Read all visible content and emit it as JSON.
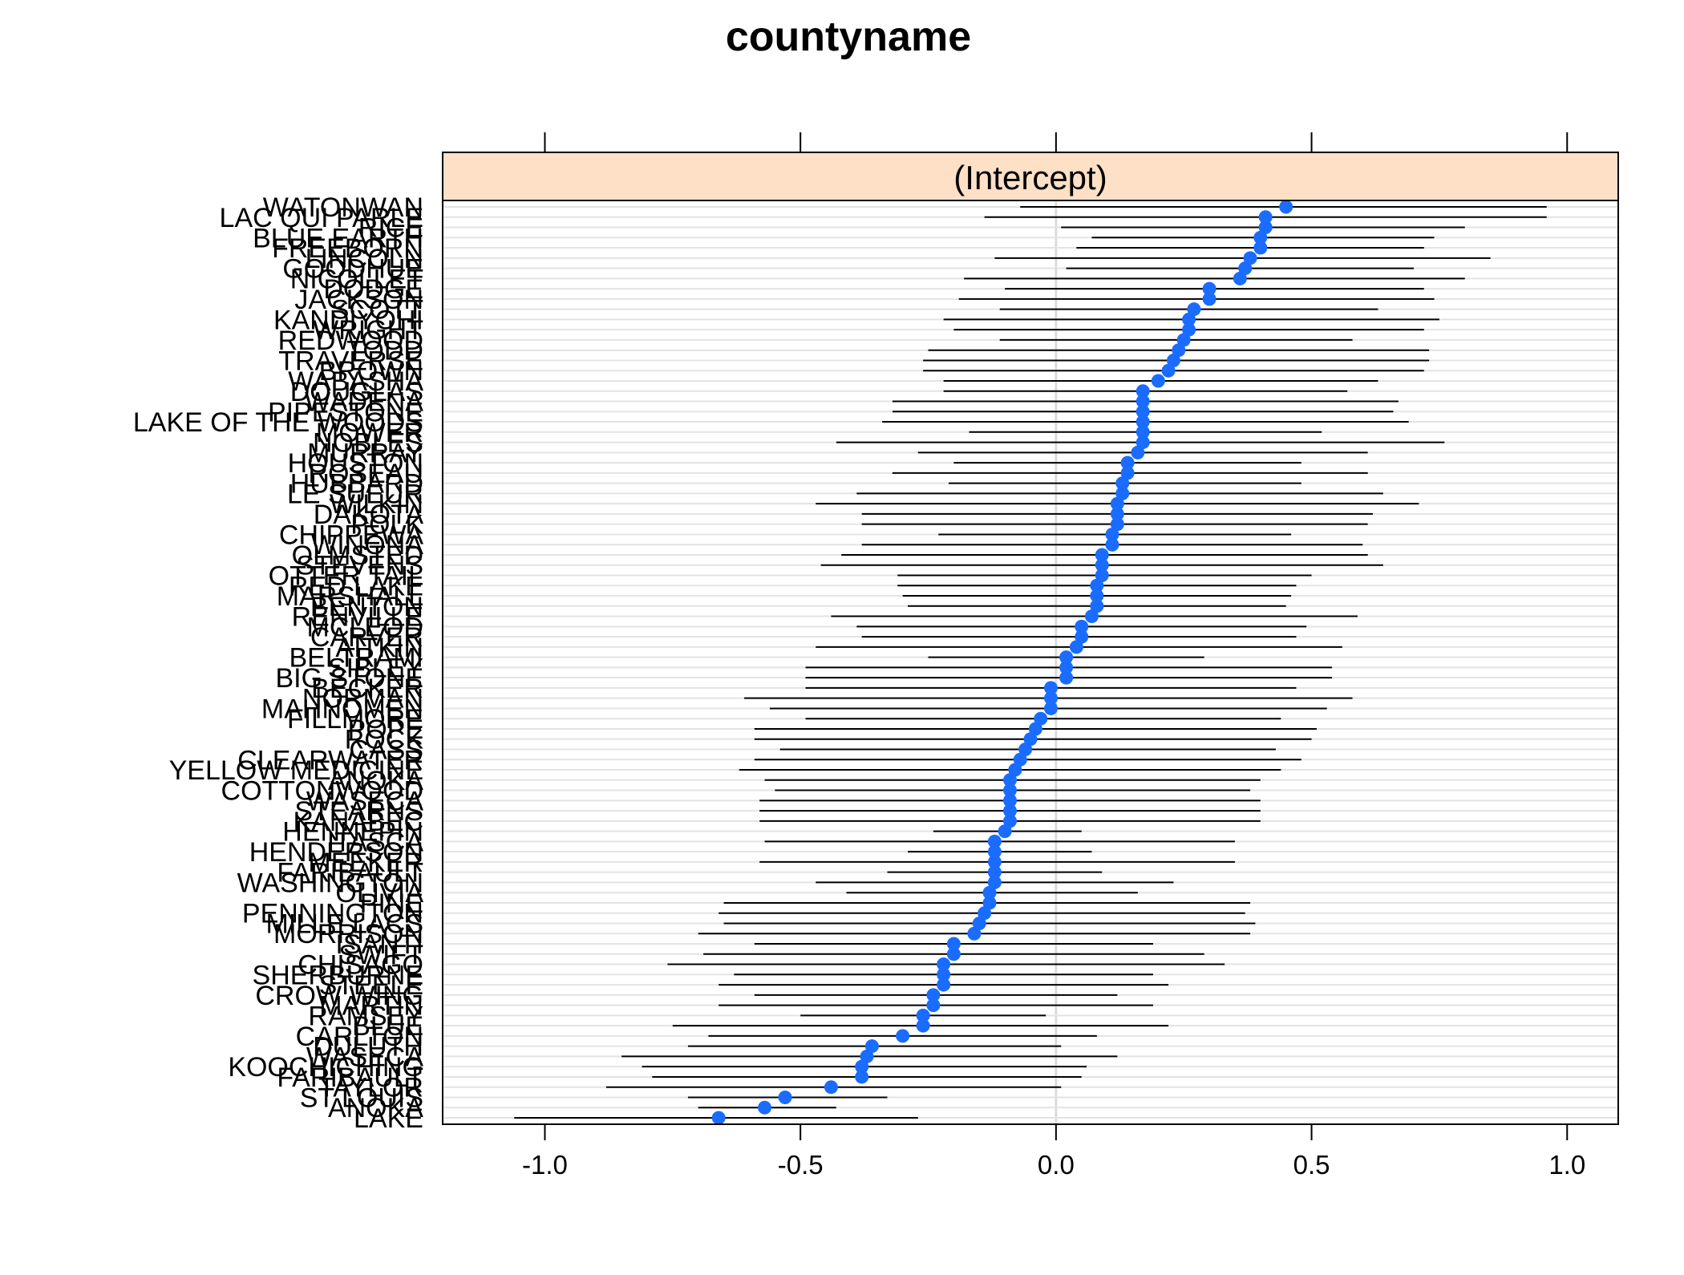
{
  "chart_data": {
    "type": "dotplot",
    "title": "countyname",
    "panel_label": "(Intercept)",
    "xlim": [
      -1.2,
      1.1
    ],
    "x_ticks": [
      -1.0,
      -0.5,
      0.0,
      0.5,
      1.0
    ],
    "x_tick_labels": [
      "-1.0",
      "-0.5",
      "0.0",
      "0.5",
      "1.0"
    ],
    "grid": true,
    "colors": {
      "point": "#1a6cff",
      "strip": "#fde0c5",
      "interval": "#000000",
      "gridline": "#e3e3e3",
      "zeroline": "#dcdcdc"
    },
    "counties": [
      {
        "name": "WATONWAN",
        "estimate": 0.45,
        "lower": -0.07,
        "upper": 0.96
      },
      {
        "name": "LAC QUI PARLE",
        "estimate": 0.41,
        "lower": -0.14,
        "upper": 0.96
      },
      {
        "name": "RICE",
        "estimate": 0.41,
        "lower": 0.01,
        "upper": 0.8
      },
      {
        "name": "BLUE EARTH",
        "estimate": 0.4,
        "lower": 0.07,
        "upper": 0.74
      },
      {
        "name": "FREEBORN",
        "estimate": 0.4,
        "lower": 0.04,
        "upper": 0.72
      },
      {
        "name": "LINCOLN",
        "estimate": 0.38,
        "lower": -0.12,
        "upper": 0.85
      },
      {
        "name": "GOODHUE",
        "estimate": 0.37,
        "lower": 0.02,
        "upper": 0.7
      },
      {
        "name": "NICOLLET",
        "estimate": 0.36,
        "lower": -0.18,
        "upper": 0.8
      },
      {
        "name": "DODGE",
        "estimate": 0.3,
        "lower": -0.1,
        "upper": 0.72
      },
      {
        "name": "JACKSON",
        "estimate": 0.3,
        "lower": -0.19,
        "upper": 0.74
      },
      {
        "name": "SCOTT",
        "estimate": 0.27,
        "lower": -0.11,
        "upper": 0.63
      },
      {
        "name": "KANDIYOHI",
        "estimate": 0.26,
        "lower": -0.22,
        "upper": 0.75
      },
      {
        "name": "WRIGHT",
        "estimate": 0.26,
        "lower": -0.2,
        "upper": 0.72
      },
      {
        "name": "REDWOOD",
        "estimate": 0.25,
        "lower": -0.11,
        "upper": 0.58
      },
      {
        "name": "TODD",
        "estimate": 0.24,
        "lower": -0.25,
        "upper": 0.73
      },
      {
        "name": "TRAVERSE",
        "estimate": 0.23,
        "lower": -0.26,
        "upper": 0.73
      },
      {
        "name": "BROWN",
        "estimate": 0.22,
        "lower": -0.26,
        "upper": 0.72
      },
      {
        "name": "WABASHA",
        "estimate": 0.2,
        "lower": -0.22,
        "upper": 0.63
      },
      {
        "name": "DOUGLAS",
        "estimate": 0.17,
        "lower": -0.22,
        "upper": 0.57
      },
      {
        "name": "WADENA",
        "estimate": 0.17,
        "lower": -0.32,
        "upper": 0.67
      },
      {
        "name": "PIPESTONE",
        "estimate": 0.17,
        "lower": -0.32,
        "upper": 0.66
      },
      {
        "name": "LAKE OF THE WOODS",
        "estimate": 0.17,
        "lower": -0.34,
        "upper": 0.69
      },
      {
        "name": "MOWER",
        "estimate": 0.17,
        "lower": -0.17,
        "upper": 0.52
      },
      {
        "name": "NOBLES",
        "estimate": 0.17,
        "lower": -0.43,
        "upper": 0.76
      },
      {
        "name": "MURRAY",
        "estimate": 0.16,
        "lower": -0.27,
        "upper": 0.61
      },
      {
        "name": "HOUSTON",
        "estimate": 0.14,
        "lower": -0.2,
        "upper": 0.48
      },
      {
        "name": "ROSEAU",
        "estimate": 0.14,
        "lower": -0.32,
        "upper": 0.61
      },
      {
        "name": "HUBBARD",
        "estimate": 0.13,
        "lower": -0.21,
        "upper": 0.48
      },
      {
        "name": "LE SUEUR",
        "estimate": 0.13,
        "lower": -0.39,
        "upper": 0.64
      },
      {
        "name": "WILKIN",
        "estimate": 0.12,
        "lower": -0.47,
        "upper": 0.71
      },
      {
        "name": "DAKOTA",
        "estimate": 0.12,
        "lower": -0.38,
        "upper": 0.62
      },
      {
        "name": "POLK",
        "estimate": 0.12,
        "lower": -0.38,
        "upper": 0.61
      },
      {
        "name": "CHIPPEWA",
        "estimate": 0.11,
        "lower": -0.23,
        "upper": 0.46
      },
      {
        "name": "WINONA",
        "estimate": 0.11,
        "lower": -0.38,
        "upper": 0.6
      },
      {
        "name": "OLMSTED",
        "estimate": 0.09,
        "lower": -0.42,
        "upper": 0.61
      },
      {
        "name": "STEVENS",
        "estimate": 0.09,
        "lower": -0.46,
        "upper": 0.64
      },
      {
        "name": "OTTER TAIL",
        "estimate": 0.09,
        "lower": -0.31,
        "upper": 0.5
      },
      {
        "name": "RED LAKE",
        "estimate": 0.08,
        "lower": -0.31,
        "upper": 0.47
      },
      {
        "name": "MARSHALL",
        "estimate": 0.08,
        "lower": -0.3,
        "upper": 0.46
      },
      {
        "name": "BENTON",
        "estimate": 0.08,
        "lower": -0.29,
        "upper": 0.45
      },
      {
        "name": "RENVILLE",
        "estimate": 0.07,
        "lower": -0.44,
        "upper": 0.59
      },
      {
        "name": "MCLEOD",
        "estimate": 0.05,
        "lower": -0.39,
        "upper": 0.49
      },
      {
        "name": "CARVER",
        "estimate": 0.05,
        "lower": -0.38,
        "upper": 0.47
      },
      {
        "name": "AITKIN",
        "estimate": 0.04,
        "lower": -0.47,
        "upper": 0.56
      },
      {
        "name": "BELTRAMI",
        "estimate": 0.02,
        "lower": -0.25,
        "upper": 0.29
      },
      {
        "name": "SIBLEY",
        "estimate": 0.02,
        "lower": -0.49,
        "upper": 0.54
      },
      {
        "name": "BIG STONE",
        "estimate": 0.02,
        "lower": -0.49,
        "upper": 0.54
      },
      {
        "name": "BECKER",
        "estimate": -0.01,
        "lower": -0.49,
        "upper": 0.47
      },
      {
        "name": "NORMAN",
        "estimate": -0.01,
        "lower": -0.61,
        "upper": 0.58
      },
      {
        "name": "MAHNOMEN",
        "estimate": -0.01,
        "lower": -0.56,
        "upper": 0.53
      },
      {
        "name": "FILLMORE",
        "estimate": -0.03,
        "lower": -0.49,
        "upper": 0.44
      },
      {
        "name": "POPE",
        "estimate": -0.04,
        "lower": -0.59,
        "upper": 0.51
      },
      {
        "name": "ROCK",
        "estimate": -0.05,
        "lower": -0.59,
        "upper": 0.5
      },
      {
        "name": "CASS",
        "estimate": -0.06,
        "lower": -0.54,
        "upper": 0.43
      },
      {
        "name": "CLEARWATER",
        "estimate": -0.07,
        "lower": -0.59,
        "upper": 0.48
      },
      {
        "name": "YELLOW MEDICINE",
        "estimate": -0.08,
        "lower": -0.62,
        "upper": 0.44
      },
      {
        "name": "ANOKA",
        "estimate": -0.09,
        "lower": -0.57,
        "upper": 0.4
      },
      {
        "name": "COTTONWOOD",
        "estimate": -0.09,
        "lower": -0.55,
        "upper": 0.38
      },
      {
        "name": "WASECA",
        "estimate": -0.09,
        "lower": -0.58,
        "upper": 0.4
      },
      {
        "name": "STEARNS",
        "estimate": -0.09,
        "lower": -0.58,
        "upper": 0.4
      },
      {
        "name": "KANABEC",
        "estimate": -0.09,
        "lower": -0.58,
        "upper": 0.4
      },
      {
        "name": "HENNEPIN",
        "estimate": -0.1,
        "lower": -0.24,
        "upper": 0.05
      },
      {
        "name": "ITASCA",
        "estimate": -0.12,
        "lower": -0.57,
        "upper": 0.35
      },
      {
        "name": "HENDERSON",
        "estimate": -0.12,
        "lower": -0.29,
        "upper": 0.07
      },
      {
        "name": "MEEKER",
        "estimate": -0.12,
        "lower": -0.58,
        "upper": 0.35
      },
      {
        "name": "FARIBAULT",
        "estimate": -0.12,
        "lower": -0.33,
        "upper": 0.09
      },
      {
        "name": "WASHINGTON",
        "estimate": -0.12,
        "lower": -0.47,
        "upper": 0.23
      },
      {
        "name": "OLIVIA",
        "estimate": -0.13,
        "lower": -0.41,
        "upper": 0.16
      },
      {
        "name": "PINE",
        "estimate": -0.13,
        "lower": -0.65,
        "upper": 0.38
      },
      {
        "name": "PENNINGTON",
        "estimate": -0.14,
        "lower": -0.66,
        "upper": 0.37
      },
      {
        "name": "MILLE LACS",
        "estimate": -0.15,
        "lower": -0.65,
        "upper": 0.39
      },
      {
        "name": "MORRISON",
        "estimate": -0.16,
        "lower": -0.7,
        "upper": 0.38
      },
      {
        "name": "ISANTI",
        "estimate": -0.2,
        "lower": -0.59,
        "upper": 0.19
      },
      {
        "name": "SWIFT",
        "estimate": -0.2,
        "lower": -0.69,
        "upper": 0.29
      },
      {
        "name": "CHISAGO",
        "estimate": -0.22,
        "lower": -0.76,
        "upper": 0.33
      },
      {
        "name": "SHERBURNE",
        "estimate": -0.22,
        "lower": -0.63,
        "upper": 0.19
      },
      {
        "name": "STEELE",
        "estimate": -0.22,
        "lower": -0.66,
        "upper": 0.22
      },
      {
        "name": "CROW WING",
        "estimate": -0.24,
        "lower": -0.59,
        "upper": 0.12
      },
      {
        "name": "MARTIN",
        "estimate": -0.24,
        "lower": -0.66,
        "upper": 0.19
      },
      {
        "name": "RAMSEY",
        "estimate": -0.26,
        "lower": -0.5,
        "upper": -0.02
      },
      {
        "name": "BLUE",
        "estimate": -0.26,
        "lower": -0.75,
        "upper": 0.22
      },
      {
        "name": "CARLTON",
        "estimate": -0.3,
        "lower": -0.68,
        "upper": 0.08
      },
      {
        "name": "DULUTH",
        "estimate": -0.36,
        "lower": -0.72,
        "upper": 0.01
      },
      {
        "name": "WASECA2",
        "estimate": -0.37,
        "lower": -0.85,
        "upper": 0.12
      },
      {
        "name": "KOOCHICHING",
        "estimate": -0.38,
        "lower": -0.81,
        "upper": 0.06
      },
      {
        "name": "FARIBAULT2",
        "estimate": -0.38,
        "lower": -0.79,
        "upper": 0.05
      },
      {
        "name": "TAYLOR",
        "estimate": -0.44,
        "lower": -0.88,
        "upper": 0.01
      },
      {
        "name": "ST LOUIS",
        "estimate": -0.53,
        "lower": -0.72,
        "upper": -0.33
      },
      {
        "name": "ANOKA2",
        "estimate": -0.57,
        "lower": -0.7,
        "upper": -0.43
      },
      {
        "name": "LAKE",
        "estimate": -0.66,
        "lower": -1.06,
        "upper": -0.27
      }
    ]
  }
}
